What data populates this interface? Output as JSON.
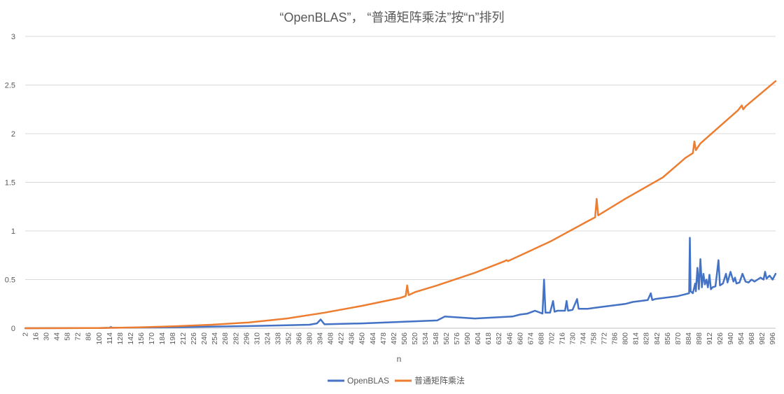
{
  "chart_data": {
    "type": "line",
    "title": "“OpenBLAS”， “普通矩阵乘法”按“n”排列",
    "xlabel": "n",
    "ylabel": "",
    "ylim": [
      0,
      3
    ],
    "yticks": [
      "0",
      "0.5",
      "1",
      "1.5",
      "2",
      "2.5",
      "3"
    ],
    "xlim": [
      2,
      1000
    ],
    "xticks": [
      "2",
      "16",
      "30",
      "44",
      "58",
      "72",
      "86",
      "100",
      "114",
      "128",
      "142",
      "156",
      "170",
      "184",
      "198",
      "212",
      "226",
      "240",
      "254",
      "268",
      "282",
      "296",
      "310",
      "324",
      "338",
      "352",
      "366",
      "380",
      "394",
      "408",
      "422",
      "436",
      "450",
      "464",
      "478",
      "492",
      "506",
      "520",
      "534",
      "548",
      "562",
      "576",
      "590",
      "604",
      "618",
      "632",
      "646",
      "660",
      "674",
      "688",
      "702",
      "716",
      "730",
      "744",
      "758",
      "772",
      "786",
      "800",
      "814",
      "828",
      "842",
      "856",
      "870",
      "884",
      "898",
      "912",
      "926",
      "940",
      "954",
      "968",
      "982",
      "996"
    ],
    "grid": true,
    "legend_position": "bottom",
    "series": [
      {
        "name": "OpenBLAS",
        "color": "#4472C4",
        "x": [
          2,
          100,
          114,
          116,
          118,
          200,
          250,
          300,
          350,
          380,
          390,
          395,
          400,
          450,
          500,
          550,
          560,
          600,
          650,
          660,
          670,
          680,
          690,
          692,
          694,
          700,
          704,
          706,
          710,
          720,
          722,
          724,
          730,
          736,
          738,
          742,
          750,
          760,
          770,
          780,
          790,
          800,
          810,
          820,
          830,
          834,
          836,
          840,
          850,
          860,
          870,
          880,
          885,
          886,
          887,
          890,
          893,
          894,
          896,
          898,
          900,
          902,
          904,
          906,
          908,
          910,
          912,
          914,
          916,
          920,
          924,
          926,
          928,
          930,
          934,
          936,
          940,
          944,
          946,
          948,
          952,
          956,
          960,
          964,
          968,
          972,
          976,
          980,
          984,
          986,
          988,
          992,
          996,
          1000
        ],
        "y": [
          0,
          0.002,
          0.004,
          0.012,
          0.004,
          0.01,
          0.016,
          0.022,
          0.03,
          0.036,
          0.05,
          0.09,
          0.04,
          0.05,
          0.065,
          0.08,
          0.12,
          0.1,
          0.12,
          0.14,
          0.15,
          0.18,
          0.15,
          0.5,
          0.16,
          0.16,
          0.28,
          0.17,
          0.18,
          0.18,
          0.28,
          0.18,
          0.19,
          0.3,
          0.2,
          0.2,
          0.2,
          0.21,
          0.22,
          0.23,
          0.24,
          0.25,
          0.27,
          0.28,
          0.29,
          0.36,
          0.29,
          0.3,
          0.31,
          0.32,
          0.33,
          0.35,
          0.36,
          0.93,
          0.38,
          0.36,
          0.46,
          0.38,
          0.62,
          0.4,
          0.71,
          0.42,
          0.56,
          0.45,
          0.5,
          0.42,
          0.55,
          0.4,
          0.42,
          0.43,
          0.7,
          0.44,
          0.45,
          0.46,
          0.56,
          0.47,
          0.58,
          0.48,
          0.52,
          0.46,
          0.47,
          0.56,
          0.48,
          0.47,
          0.5,
          0.48,
          0.5,
          0.52,
          0.5,
          0.58,
          0.51,
          0.54,
          0.5,
          0.56
        ]
      },
      {
        "name": "普通矩阵乘法",
        "color": "#ED7D31",
        "x": [
          2,
          100,
          150,
          200,
          250,
          300,
          350,
          400,
          450,
          500,
          508,
          510,
          512,
          520,
          550,
          600,
          640,
          642,
          644,
          700,
          750,
          760,
          762,
          764,
          766,
          800,
          850,
          880,
          890,
          892,
          894,
          900,
          950,
          955,
          957,
          960,
          1000
        ],
        "y": [
          0,
          0.002,
          0.008,
          0.02,
          0.036,
          0.06,
          0.1,
          0.16,
          0.23,
          0.31,
          0.33,
          0.44,
          0.34,
          0.37,
          0.44,
          0.57,
          0.69,
          0.7,
          0.69,
          0.89,
          1.1,
          1.14,
          1.33,
          1.16,
          1.17,
          1.33,
          1.55,
          1.75,
          1.8,
          1.92,
          1.83,
          1.9,
          2.24,
          2.29,
          2.25,
          2.28,
          2.54
        ]
      }
    ]
  }
}
